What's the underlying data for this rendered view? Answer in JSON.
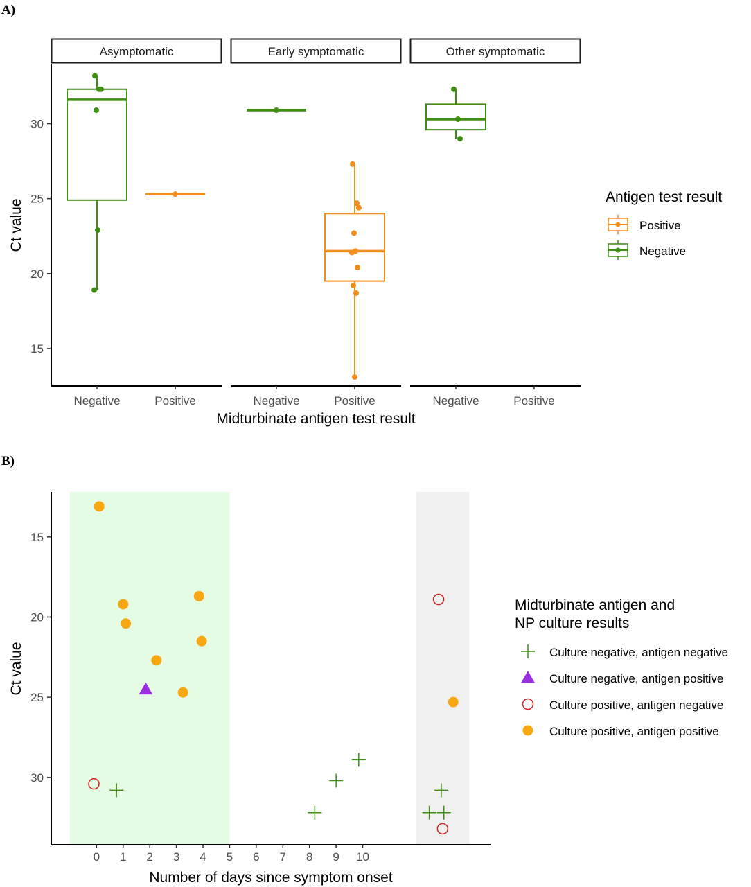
{
  "figure": {
    "panel_a_tag": "A)",
    "panel_b_tag": "B)"
  },
  "chart_data": [
    {
      "type": "box",
      "facets": [
        "Asymptomatic",
        "Early symptomatic",
        "Other symptomatic"
      ],
      "categories": [
        "Negative",
        "Positive"
      ],
      "xlabel": "Midturbinate antigen test result",
      "ylabel": "Ct value",
      "ylim": [
        12.5,
        34
      ],
      "yticks": [
        15,
        20,
        25,
        30
      ],
      "legend": {
        "title": "Antigen test result",
        "position": "right",
        "entries": [
          "Positive",
          "Negative"
        ]
      },
      "colors": {
        "Positive": "#f28e1c",
        "Negative": "#3e8e14"
      },
      "boxes": [
        {
          "facet": "Asymptomatic",
          "category": "Negative",
          "group": "Negative",
          "whisker_low": 18.9,
          "q1": 24.9,
          "median": 31.6,
          "q3": 32.3,
          "whisker_high": 33.2,
          "points": [
            33.2,
            32.3,
            32.3,
            30.9,
            22.9,
            18.9
          ]
        },
        {
          "facet": "Asymptomatic",
          "category": "Positive",
          "group": "Positive",
          "whisker_low": 25.3,
          "q1": 25.3,
          "median": 25.3,
          "q3": 25.3,
          "whisker_high": 25.3,
          "points": [
            25.3
          ]
        },
        {
          "facet": "Early symptomatic",
          "category": "Negative",
          "group": "Negative",
          "whisker_low": 30.9,
          "q1": 30.9,
          "median": 30.9,
          "q3": 30.9,
          "whisker_high": 30.9,
          "points": [
            30.9
          ]
        },
        {
          "facet": "Early symptomatic",
          "category": "Positive",
          "group": "Positive",
          "whisker_low": 13.1,
          "q1": 19.5,
          "median": 21.5,
          "q3": 24.0,
          "whisker_high": 27.3,
          "points": [
            27.3,
            24.7,
            24.4,
            22.7,
            21.5,
            21.4,
            20.4,
            19.2,
            18.7,
            13.1
          ]
        },
        {
          "facet": "Other symptomatic",
          "category": "Negative",
          "group": "Negative",
          "whisker_low": 29.0,
          "q1": 29.6,
          "median": 30.3,
          "q3": 31.3,
          "whisker_high": 32.3,
          "points": [
            32.3,
            30.3,
            29.0
          ]
        }
      ]
    },
    {
      "type": "scatter",
      "xlabel": "Number of days since symptom onset",
      "ylabel": "Ct value",
      "x_ticks": [
        0,
        1,
        2,
        3,
        4,
        5,
        6,
        7,
        8,
        9,
        10
      ],
      "xlim": [
        -1.7,
        14.8
      ],
      "ylim": [
        12.2,
        34.2
      ],
      "y_reversed": true,
      "yticks": [
        15,
        20,
        25,
        30
      ],
      "shaded_regions": [
        {
          "x0": -1,
          "x1": 5,
          "color": "#e4fbe4"
        },
        {
          "x0": 12,
          "x1": 14,
          "color": "#f0f0f0"
        }
      ],
      "legend": {
        "title_line1": "Midturbinate antigen and",
        "title_line2": " NP culture results",
        "position": "right",
        "entries": [
          {
            "label": "Culture negative, antigen negative",
            "shape": "plus",
            "color": "#3e8e14"
          },
          {
            "label": "Culture negative, antigen positive",
            "shape": "triangle",
            "color": "#9b30e0"
          },
          {
            "label": "Culture positive, antigen negative",
            "shape": "open-circle",
            "color": "#d42020"
          },
          {
            "label": "Culture positive, antigen positive",
            "shape": "filled-circle",
            "color": "#f7a712"
          }
        ]
      },
      "series": [
        {
          "name": "Culture negative, antigen negative",
          "points": [
            [
              0.75,
              30.8
            ],
            [
              8.2,
              32.2
            ],
            [
              9.0,
              30.2
            ],
            [
              9.85,
              28.9
            ],
            [
              12.5,
              32.2
            ],
            [
              13.05,
              32.2
            ],
            [
              12.95,
              30.8
            ]
          ]
        },
        {
          "name": "Culture negative, antigen positive",
          "points": [
            [
              1.85,
              24.5
            ]
          ]
        },
        {
          "name": "Culture positive, antigen negative",
          "points": [
            [
              -0.1,
              30.4
            ],
            [
              12.85,
              18.9
            ],
            [
              13.0,
              33.2
            ]
          ]
        },
        {
          "name": "Culture positive, antigen positive",
          "points": [
            [
              0.1,
              13.1
            ],
            [
              1.0,
              19.2
            ],
            [
              1.1,
              20.4
            ],
            [
              2.25,
              22.7
            ],
            [
              3.25,
              24.7
            ],
            [
              3.85,
              18.7
            ],
            [
              3.95,
              21.5
            ],
            [
              13.4,
              25.3
            ]
          ]
        }
      ]
    }
  ]
}
